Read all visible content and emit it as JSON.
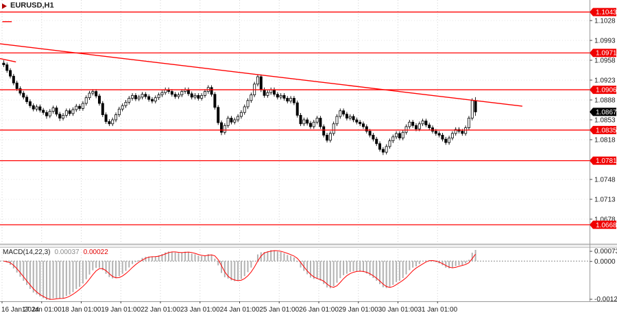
{
  "window": {
    "symbol_label": "EURUSD,H1"
  },
  "icons": {
    "symbol_marker": "triangle-right"
  },
  "colors": {
    "level_line": "#ff0000",
    "level_tag_bg": "#f00000",
    "current_tag_bg": "#000000",
    "bull_candle": "#ffffff",
    "bear_candle": "#000000",
    "macd_hist": "#b2b2b2",
    "macd_signal": "#ff0000"
  },
  "chart_data": {
    "type": "candlestick",
    "symbol": "EURUSD",
    "timeframe": "H1",
    "grid": true,
    "y_range": [
      1.0634,
      1.1064
    ],
    "x_labels": [
      "16 Jan 2024",
      "17 Jan 01:00",
      "18 Jan 01:00",
      "19 Jan 01:00",
      "22 Jan 01:00",
      "23 Jan 01:00",
      "24 Jan 01:00",
      "25 Jan 01:00",
      "26 Jan 01:00",
      "29 Jan 01:00",
      "30 Jan 01:00",
      "31 Jan 01:00"
    ],
    "y_ticks": [
      "1.1028",
      "1.0993",
      "1.0958",
      "1.0923",
      "1.0888",
      "1.0853",
      "1.0818",
      "1.0748",
      "1.0713",
      "1.0678"
    ],
    "levels": [
      "1.1043",
      "1.0971",
      "1.0906",
      "1.0835",
      "1.0781",
      "1.0668"
    ],
    "current_price": "1.0867",
    "trendlines": [
      [
        [
          0.0,
          1.0987
        ],
        [
          0.886,
          1.0877
        ]
      ],
      [
        [
          0.004,
          1.1026
        ],
        [
          0.02,
          1.1026
        ]
      ],
      [
        [
          0.0,
          1.0961
        ],
        [
          0.027,
          1.0955
        ]
      ]
    ],
    "candles": [
      [
        1.0953,
        1.0958,
        1.0946,
        1.095
      ],
      [
        1.095,
        1.0954,
        1.0936,
        1.094
      ],
      [
        1.094,
        1.0944,
        1.0926,
        1.093
      ],
      [
        1.093,
        1.0934,
        1.0914,
        1.0918
      ],
      [
        1.0918,
        1.0922,
        1.0904,
        1.0908
      ],
      [
        1.0908,
        1.0912,
        1.0896,
        1.09
      ],
      [
        1.09,
        1.0904,
        1.0889,
        1.0893
      ],
      [
        1.0893,
        1.0897,
        1.0881,
        1.0885
      ],
      [
        1.0885,
        1.0889,
        1.0874,
        1.0878
      ],
      [
        1.0878,
        1.0882,
        1.0868,
        1.0872
      ],
      [
        1.0872,
        1.088,
        1.0868,
        1.0876
      ],
      [
        1.0876,
        1.088,
        1.0866,
        1.087
      ],
      [
        1.087,
        1.0874,
        1.0862,
        1.0866
      ],
      [
        1.0866,
        1.087,
        1.0855,
        1.086
      ],
      [
        1.086,
        1.0872,
        1.0856,
        1.0868
      ],
      [
        1.0868,
        1.0878,
        1.0864,
        1.0874
      ],
      [
        1.0874,
        1.0878,
        1.0859,
        1.0863
      ],
      [
        1.0863,
        1.0867,
        1.0851,
        1.0856
      ],
      [
        1.0856,
        1.0865,
        1.0852,
        1.0861
      ],
      [
        1.0861,
        1.0873,
        1.0857,
        1.0869
      ],
      [
        1.0869,
        1.0873,
        1.086,
        1.0864
      ],
      [
        1.0864,
        1.0875,
        1.086,
        1.0871
      ],
      [
        1.0871,
        1.0881,
        1.0867,
        1.0877
      ],
      [
        1.0877,
        1.0881,
        1.0869,
        1.0873
      ],
      [
        1.0873,
        1.0886,
        1.0869,
        1.0882
      ],
      [
        1.0882,
        1.0896,
        1.0878,
        1.0892
      ],
      [
        1.0892,
        1.0904,
        1.0888,
        1.09
      ],
      [
        1.09,
        1.0907,
        1.0896,
        1.0903
      ],
      [
        1.0903,
        1.0907,
        1.0891,
        1.0895
      ],
      [
        1.0895,
        1.0899,
        1.0878,
        1.0882
      ],
      [
        1.0882,
        1.0886,
        1.0858,
        1.0862
      ],
      [
        1.0862,
        1.0866,
        1.0846,
        1.085
      ],
      [
        1.085,
        1.0854,
        1.0842,
        1.0846
      ],
      [
        1.0846,
        1.0857,
        1.0842,
        1.0853
      ],
      [
        1.0853,
        1.0866,
        1.0849,
        1.0862
      ],
      [
        1.0862,
        1.0876,
        1.0858,
        1.0872
      ],
      [
        1.0872,
        1.0882,
        1.0868,
        1.0878
      ],
      [
        1.0878,
        1.0888,
        1.0874,
        1.0884
      ],
      [
        1.0884,
        1.0895,
        1.088,
        1.0891
      ],
      [
        1.0891,
        1.09,
        1.0887,
        1.0896
      ],
      [
        1.0896,
        1.09,
        1.0886,
        1.089
      ],
      [
        1.089,
        1.0897,
        1.0886,
        1.0893
      ],
      [
        1.0893,
        1.0902,
        1.0889,
        1.0898
      ],
      [
        1.0898,
        1.0902,
        1.089,
        1.0894
      ],
      [
        1.0894,
        1.0898,
        1.0885,
        1.0889
      ],
      [
        1.0889,
        1.0893,
        1.0882,
        1.0886
      ],
      [
        1.0886,
        1.0896,
        1.0882,
        1.0892
      ],
      [
        1.0892,
        1.0901,
        1.0888,
        1.0897
      ],
      [
        1.0897,
        1.0905,
        1.0893,
        1.0901
      ],
      [
        1.0901,
        1.091,
        1.0897,
        1.0906
      ],
      [
        1.0906,
        1.091,
        1.0899,
        1.0903
      ],
      [
        1.0903,
        1.0907,
        1.0894,
        1.0898
      ],
      [
        1.0898,
        1.0902,
        1.089,
        1.0894
      ],
      [
        1.0894,
        1.0901,
        1.089,
        1.0897
      ],
      [
        1.0897,
        1.0907,
        1.0893,
        1.0903
      ],
      [
        1.0903,
        1.091,
        1.0899,
        1.0906
      ],
      [
        1.0906,
        1.091,
        1.0895,
        1.0899
      ],
      [
        1.0899,
        1.0903,
        1.0889,
        1.0893
      ],
      [
        1.0893,
        1.09,
        1.0889,
        1.0896
      ],
      [
        1.0896,
        1.09,
        1.0887,
        1.0891
      ],
      [
        1.0891,
        1.09,
        1.0887,
        1.0896
      ],
      [
        1.0896,
        1.0907,
        1.0892,
        1.0903
      ],
      [
        1.0903,
        1.0914,
        1.0899,
        1.091
      ],
      [
        1.091,
        1.0914,
        1.0894,
        1.0898
      ],
      [
        1.0898,
        1.0902,
        1.0871,
        1.0875
      ],
      [
        1.0875,
        1.0879,
        1.0844,
        1.0848
      ],
      [
        1.0848,
        1.0852,
        1.0826,
        1.0831
      ],
      [
        1.0831,
        1.0847,
        1.0827,
        1.0843
      ],
      [
        1.0843,
        1.086,
        1.0839,
        1.0856
      ],
      [
        1.0856,
        1.086,
        1.0845,
        1.0849
      ],
      [
        1.0849,
        1.0857,
        1.0845,
        1.0853
      ],
      [
        1.0853,
        1.0863,
        1.0849,
        1.0859
      ],
      [
        1.0859,
        1.087,
        1.0855,
        1.0866
      ],
      [
        1.0866,
        1.088,
        1.0862,
        1.0876
      ],
      [
        1.0876,
        1.0891,
        1.0872,
        1.0887
      ],
      [
        1.0887,
        1.0901,
        1.0883,
        1.0897
      ],
      [
        1.0897,
        1.092,
        1.0893,
        1.0916
      ],
      [
        1.0916,
        1.0933,
        1.0912,
        1.0929
      ],
      [
        1.0929,
        1.0933,
        1.0902,
        1.0906
      ],
      [
        1.0906,
        1.091,
        1.0892,
        1.0896
      ],
      [
        1.0896,
        1.0905,
        1.0892,
        1.0901
      ],
      [
        1.0901,
        1.091,
        1.0897,
        1.0906
      ],
      [
        1.0906,
        1.091,
        1.0894,
        1.0898
      ],
      [
        1.0898,
        1.0902,
        1.0889,
        1.0893
      ],
      [
        1.0893,
        1.09,
        1.0889,
        1.0896
      ],
      [
        1.0896,
        1.09,
        1.0887,
        1.0891
      ],
      [
        1.0891,
        1.0895,
        1.0882,
        1.0886
      ],
      [
        1.0886,
        1.0895,
        1.0882,
        1.0891
      ],
      [
        1.0891,
        1.0895,
        1.0879,
        1.0883
      ],
      [
        1.0883,
        1.0887,
        1.0857,
        1.0861
      ],
      [
        1.0861,
        1.0865,
        1.0842,
        1.0846
      ],
      [
        1.0846,
        1.0857,
        1.0842,
        1.0853
      ],
      [
        1.0853,
        1.0857,
        1.0843,
        1.0847
      ],
      [
        1.0847,
        1.0851,
        1.0837,
        1.0841
      ],
      [
        1.0841,
        1.0853,
        1.0837,
        1.0849
      ],
      [
        1.0849,
        1.086,
        1.0845,
        1.0856
      ],
      [
        1.0856,
        1.086,
        1.0837,
        1.0841
      ],
      [
        1.0841,
        1.0845,
        1.0822,
        1.0826
      ],
      [
        1.0826,
        1.083,
        1.0813,
        1.0817
      ],
      [
        1.0817,
        1.0833,
        1.0813,
        1.0829
      ],
      [
        1.0829,
        1.085,
        1.0825,
        1.0846
      ],
      [
        1.0846,
        1.0863,
        1.0842,
        1.0859
      ],
      [
        1.0859,
        1.0873,
        1.0855,
        1.0869
      ],
      [
        1.0869,
        1.0873,
        1.0859,
        1.0863
      ],
      [
        1.0863,
        1.0867,
        1.0852,
        1.0856
      ],
      [
        1.0856,
        1.0863,
        1.0852,
        1.0859
      ],
      [
        1.0859,
        1.0863,
        1.0849,
        1.0853
      ],
      [
        1.0853,
        1.0857,
        1.0845,
        1.0849
      ],
      [
        1.0849,
        1.0853,
        1.0842,
        1.0846
      ],
      [
        1.0846,
        1.085,
        1.0837,
        1.0841
      ],
      [
        1.0841,
        1.0845,
        1.0829,
        1.0833
      ],
      [
        1.0833,
        1.0837,
        1.0822,
        1.0826
      ],
      [
        1.0826,
        1.083,
        1.0815,
        1.0819
      ],
      [
        1.0819,
        1.0823,
        1.0807,
        1.0811
      ],
      [
        1.0811,
        1.0815,
        1.0797,
        1.0801
      ],
      [
        1.0801,
        1.0805,
        1.0791,
        1.0796
      ],
      [
        1.0796,
        1.081,
        1.0792,
        1.0806
      ],
      [
        1.0806,
        1.082,
        1.0802,
        1.0816
      ],
      [
        1.0816,
        1.0827,
        1.0812,
        1.0823
      ],
      [
        1.0823,
        1.0833,
        1.0819,
        1.0829
      ],
      [
        1.0829,
        1.0833,
        1.0817,
        1.0821
      ],
      [
        1.0821,
        1.0835,
        1.0817,
        1.0831
      ],
      [
        1.0831,
        1.0845,
        1.0827,
        1.0841
      ],
      [
        1.0841,
        1.0853,
        1.0837,
        1.0849
      ],
      [
        1.0849,
        1.0853,
        1.0839,
        1.0843
      ],
      [
        1.0843,
        1.0847,
        1.0833,
        1.0837
      ],
      [
        1.0837,
        1.085,
        1.0833,
        1.0846
      ],
      [
        1.0846,
        1.0855,
        1.0842,
        1.0851
      ],
      [
        1.0851,
        1.0855,
        1.084,
        1.0844
      ],
      [
        1.0844,
        1.0848,
        1.0835,
        1.0839
      ],
      [
        1.0839,
        1.0843,
        1.0829,
        1.0833
      ],
      [
        1.0833,
        1.0837,
        1.0825,
        1.0829
      ],
      [
        1.0829,
        1.0833,
        1.0822,
        1.0826
      ],
      [
        1.0826,
        1.083,
        1.0815,
        1.0819
      ],
      [
        1.0819,
        1.0823,
        1.0809,
        1.0813
      ],
      [
        1.0813,
        1.0825,
        1.0809,
        1.0821
      ],
      [
        1.0821,
        1.0833,
        1.0817,
        1.0829
      ],
      [
        1.0829,
        1.084,
        1.0825,
        1.0836
      ],
      [
        1.0836,
        1.084,
        1.0829,
        1.0833
      ],
      [
        1.0833,
        1.0837,
        1.0825,
        1.0829
      ],
      [
        1.0829,
        1.0843,
        1.0825,
        1.0839
      ],
      [
        1.0839,
        1.086,
        1.0835,
        1.0856
      ],
      [
        1.0856,
        1.0891,
        1.0852,
        1.0887
      ],
      [
        1.0887,
        1.0893,
        1.086,
        1.0867
      ]
    ],
    "macd": {
      "title": "MACD(14,22,3)",
      "params": [
        14,
        22,
        3
      ],
      "main_value": "0.00037",
      "signal_value": "0.00022",
      "y_axis": [
        "0.00073",
        "0.0000",
        "-0.0012"
      ]
    }
  }
}
